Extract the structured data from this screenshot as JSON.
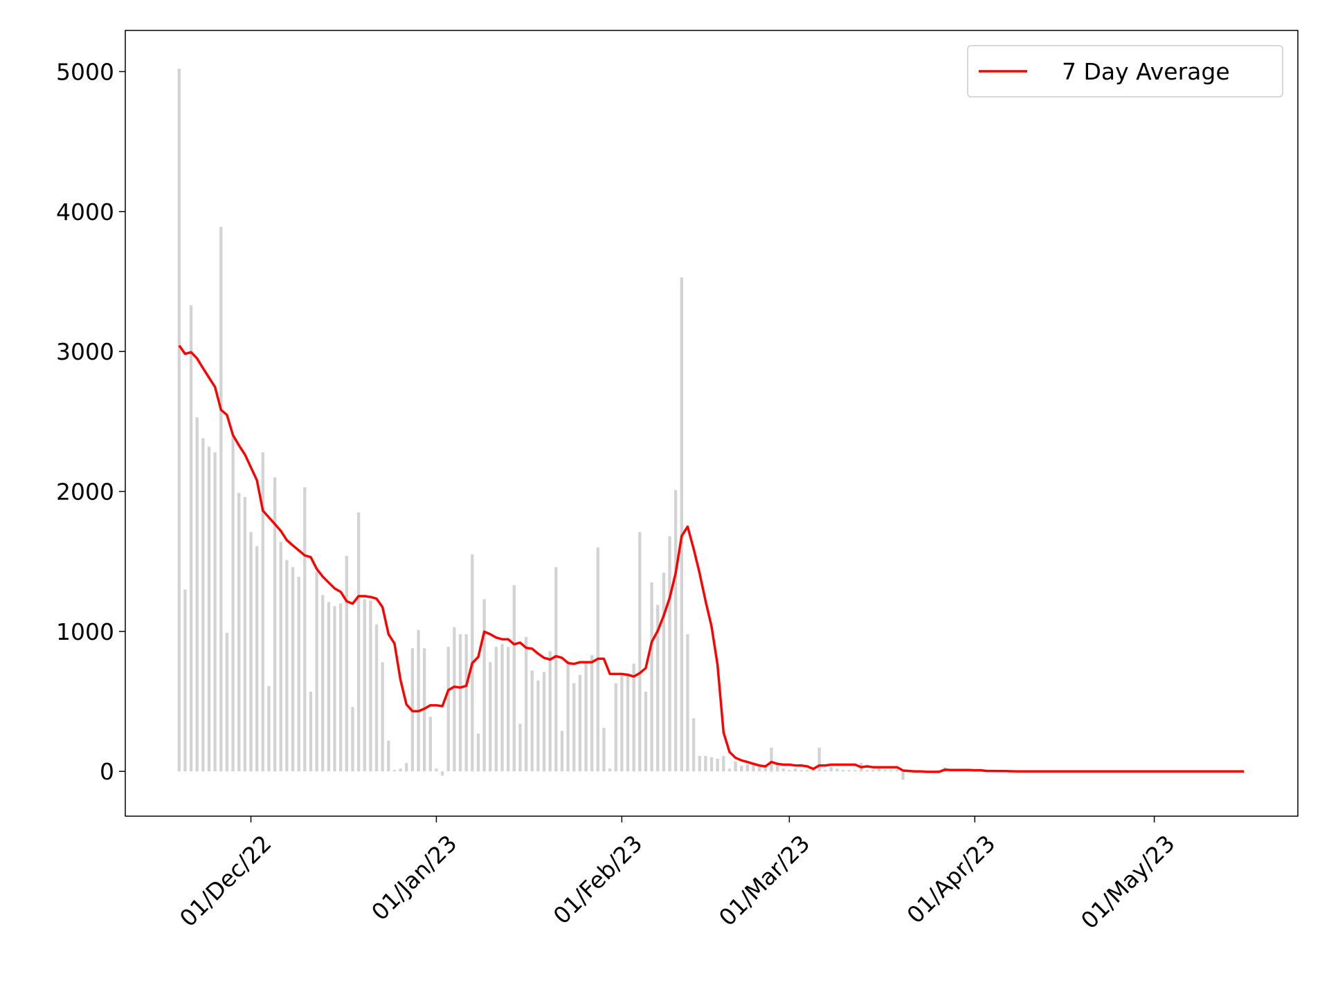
{
  "chart_data": {
    "type": "combo",
    "x": [
      "2022-11-19",
      "2022-11-20",
      "2022-11-21",
      "2022-11-22",
      "2022-11-23",
      "2022-11-24",
      "2022-11-25",
      "2022-11-26",
      "2022-11-27",
      "2022-11-28",
      "2022-11-29",
      "2022-11-30",
      "2022-12-01",
      "2022-12-02",
      "2022-12-03",
      "2022-12-04",
      "2022-12-05",
      "2022-12-06",
      "2022-12-07",
      "2022-12-08",
      "2022-12-09",
      "2022-12-10",
      "2022-12-11",
      "2022-12-12",
      "2022-12-13",
      "2022-12-14",
      "2022-12-15",
      "2022-12-16",
      "2022-12-17",
      "2022-12-18",
      "2022-12-19",
      "2022-12-20",
      "2022-12-21",
      "2022-12-22",
      "2022-12-23",
      "2022-12-24",
      "2022-12-25",
      "2022-12-26",
      "2022-12-27",
      "2022-12-28",
      "2022-12-29",
      "2022-12-30",
      "2022-12-31",
      "2023-01-01",
      "2023-01-02",
      "2023-01-03",
      "2023-01-04",
      "2023-01-05",
      "2023-01-06",
      "2023-01-07",
      "2023-01-08",
      "2023-01-09",
      "2023-01-10",
      "2023-01-11",
      "2023-01-12",
      "2023-01-13",
      "2023-01-14",
      "2023-01-15",
      "2023-01-16",
      "2023-01-17",
      "2023-01-18",
      "2023-01-19",
      "2023-01-20",
      "2023-01-21",
      "2023-01-22",
      "2023-01-23",
      "2023-01-24",
      "2023-01-25",
      "2023-01-26",
      "2023-01-27",
      "2023-01-28",
      "2023-01-29",
      "2023-01-30",
      "2023-01-31",
      "2023-02-01",
      "2023-02-02",
      "2023-02-03",
      "2023-02-04",
      "2023-02-05",
      "2023-02-06",
      "2023-02-07",
      "2023-02-08",
      "2023-02-09",
      "2023-02-10",
      "2023-02-11",
      "2023-02-12",
      "2023-02-13",
      "2023-02-14",
      "2023-02-15",
      "2023-02-16",
      "2023-02-17",
      "2023-02-18",
      "2023-02-19",
      "2023-02-20",
      "2023-02-21",
      "2023-02-22",
      "2023-02-23",
      "2023-02-24",
      "2023-02-25",
      "2023-02-26",
      "2023-02-27",
      "2023-02-28",
      "2023-03-01",
      "2023-03-02",
      "2023-03-03",
      "2023-03-04",
      "2023-03-05",
      "2023-03-06",
      "2023-03-07",
      "2023-03-08",
      "2023-03-09",
      "2023-03-10",
      "2023-03-11",
      "2023-03-12",
      "2023-03-13",
      "2023-03-14",
      "2023-03-15",
      "2023-03-16",
      "2023-03-17",
      "2023-03-18",
      "2023-03-19",
      "2023-03-20",
      "2023-03-21",
      "2023-03-22",
      "2023-03-23",
      "2023-03-24",
      "2023-03-25",
      "2023-03-26",
      "2023-03-27",
      "2023-03-28",
      "2023-03-29",
      "2023-03-30",
      "2023-03-31",
      "2023-04-01",
      "2023-04-02",
      "2023-04-03",
      "2023-04-04",
      "2023-04-05",
      "2023-04-06",
      "2023-04-07",
      "2023-04-08",
      "2023-04-09",
      "2023-04-10",
      "2023-04-11",
      "2023-04-12",
      "2023-04-13",
      "2023-04-14",
      "2023-04-15",
      "2023-04-16",
      "2023-04-17",
      "2023-04-18",
      "2023-04-19",
      "2023-04-20",
      "2023-04-21",
      "2023-04-22",
      "2023-04-23",
      "2023-04-24",
      "2023-04-25",
      "2023-04-26",
      "2023-04-27",
      "2023-04-28",
      "2023-04-29",
      "2023-04-30",
      "2023-05-01",
      "2023-05-02",
      "2023-05-03",
      "2023-05-04",
      "2023-05-05",
      "2023-05-06",
      "2023-05-07",
      "2023-05-08",
      "2023-05-09",
      "2023-05-10",
      "2023-05-11",
      "2023-05-12",
      "2023-05-13",
      "2023-05-14",
      "2023-05-15",
      "2023-05-16"
    ],
    "bars": {
      "color": "#d3d3d3",
      "values": [
        5020,
        1300,
        3330,
        2530,
        2380,
        2320,
        2280,
        3890,
        990,
        2390,
        1990,
        1960,
        1710,
        1610,
        2280,
        610,
        2100,
        1640,
        1510,
        1460,
        1390,
        2030,
        570,
        1430,
        1260,
        1210,
        1180,
        1200,
        1540,
        460,
        1850,
        1230,
        1220,
        1050,
        780,
        220,
        10,
        20,
        60,
        880,
        1010,
        880,
        390,
        20,
        -30,
        890,
        1030,
        980,
        980,
        1550,
        270,
        1230,
        780,
        890,
        910,
        890,
        1330,
        340,
        960,
        720,
        650,
        710,
        860,
        1460,
        290,
        790,
        630,
        690,
        780,
        830,
        1600,
        310,
        20,
        630,
        700,
        700,
        770,
        1710,
        570,
        1350,
        1190,
        1420,
        1680,
        2010,
        3530,
        980,
        380,
        110,
        110,
        100,
        90,
        110,
        20,
        70,
        40,
        50,
        50,
        40,
        30,
        170,
        50,
        20,
        10,
        20,
        10,
        10,
        10,
        170,
        10,
        30,
        20,
        10,
        10,
        10,
        60,
        10,
        10,
        20,
        10,
        10,
        10,
        -60,
        0,
        0,
        0,
        0,
        0,
        0,
        30,
        0,
        0,
        0,
        0,
        0,
        0,
        0,
        0,
        0,
        0,
        0,
        0,
        0,
        0,
        0,
        0,
        0,
        0,
        0,
        0,
        0,
        0,
        0,
        0,
        0,
        0,
        0,
        0,
        0,
        0,
        0,
        0,
        0,
        0,
        0,
        0,
        0,
        0,
        0,
        0,
        0,
        0,
        0,
        0,
        0,
        0,
        0,
        0,
        0,
        0
      ]
    },
    "series": [
      {
        "name": "7 Day Average",
        "color": "#ff0000",
        "values": [
          3043,
          2983,
          2995,
          2950,
          2880,
          2813,
          2747,
          2583,
          2547,
          2402,
          2330,
          2263,
          2172,
          2081,
          1863,
          1815,
          1767,
          1718,
          1652,
          1615,
          1579,
          1543,
          1531,
          1446,
          1392,
          1349,
          1307,
          1283,
          1216,
          1198,
          1252,
          1252,
          1246,
          1234,
          1174,
          980,
          914,
          653,
          478,
          430,
          430,
          448,
          472,
          472,
          466,
          581,
          605,
          599,
          611,
          774,
          817,
          998,
          980,
          956,
          944,
          944,
          908,
          920,
          883,
          877,
          841,
          811,
          799,
          823,
          811,
          774,
          768,
          780,
          780,
          780,
          805,
          805,
          696,
          696,
          696,
          690,
          678,
          702,
          738,
          926,
          1004,
          1113,
          1240,
          1416,
          1682,
          1748,
          1591,
          1416,
          1216,
          1035,
          762,
          278,
          139,
          97,
          79,
          67,
          54,
          42,
          36,
          67,
          54,
          48,
          48,
          42,
          42,
          36,
          18,
          42,
          42,
          48,
          48,
          48,
          48,
          48,
          30,
          36,
          30,
          30,
          30,
          30,
          30,
          6,
          3,
          0,
          0,
          -3,
          -3,
          -3,
          12,
          10,
          10,
          10,
          10,
          8,
          8,
          3,
          3,
          2,
          2,
          1,
          0,
          0,
          0,
          0,
          0,
          0,
          0,
          0,
          0,
          0,
          0,
          0,
          0,
          0,
          0,
          0,
          0,
          0,
          0,
          0,
          0,
          0,
          0,
          0,
          0,
          0,
          0,
          0,
          0,
          0,
          0,
          0,
          0,
          0,
          0,
          0,
          0,
          0,
          0
        ]
      }
    ],
    "xlim": [
      "2022-11-10",
      "2023-05-25"
    ],
    "xticks": [
      {
        "value": "2022-12-01",
        "label": "01/Dec/22"
      },
      {
        "value": "2023-01-01",
        "label": "01/Jan/23"
      },
      {
        "value": "2023-02-01",
        "label": "01/Feb/23"
      },
      {
        "value": "2023-03-01",
        "label": "01/Mar/23"
      },
      {
        "value": "2023-04-01",
        "label": "01/Apr/23"
      },
      {
        "value": "2023-05-01",
        "label": "01/May/23"
      }
    ],
    "ylim": [
      -320,
      5294
    ],
    "yticks": [
      0,
      1000,
      2000,
      3000,
      4000,
      5000
    ],
    "legend": "upper right"
  }
}
